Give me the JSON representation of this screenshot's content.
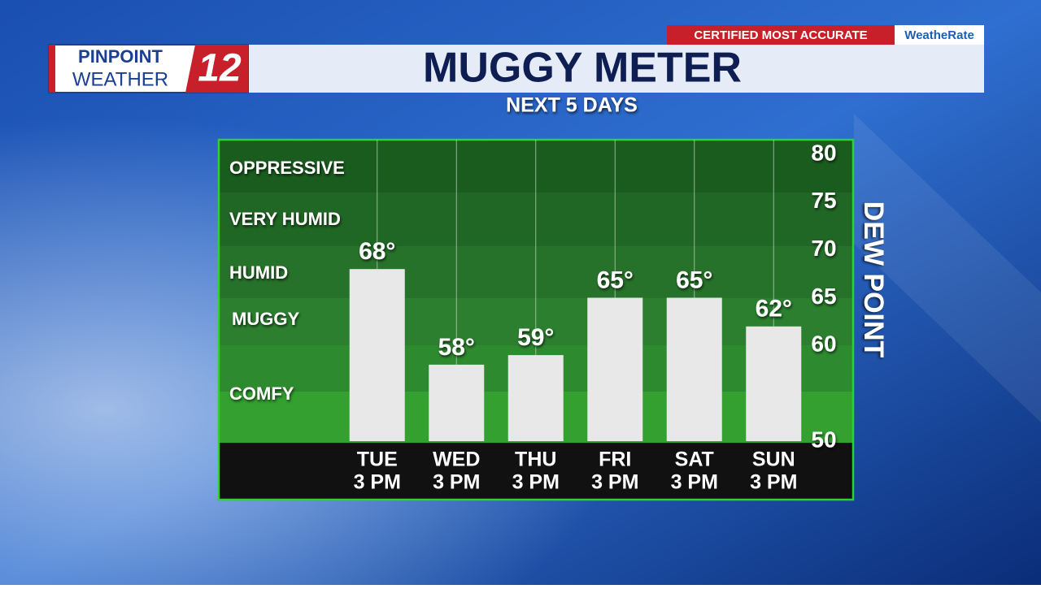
{
  "branding": {
    "logo_top": "PINPOINT",
    "logo_bottom": "WEATHER",
    "logo_number": "12",
    "badge": "CERTIFIED MOST ACCURATE",
    "badge_brand": "WeatheRate"
  },
  "chart_data": {
    "type": "bar",
    "title": "MUGGY METER",
    "subtitle": "NEXT 5 DAYS",
    "y_label": "DEW POINT",
    "categories": [
      "TUE",
      "WED",
      "THU",
      "FRI",
      "SAT",
      "SUN"
    ],
    "category_times": [
      "3 PM",
      "3 PM",
      "3 PM",
      "3 PM",
      "3 PM",
      "3 PM"
    ],
    "values": [
      68,
      58,
      59,
      65,
      65,
      62
    ],
    "value_labels": [
      "68°",
      "58°",
      "59°",
      "65°",
      "65°",
      "62°"
    ],
    "color": "#e8e8e8",
    "ylim": [
      50,
      80
    ],
    "yticks": [
      50,
      60,
      65,
      70,
      75,
      80
    ],
    "zones": [
      "OPPRESSIVE",
      "VERY HUMID",
      "HUMID",
      "MUGGY",
      "COMFY"
    ]
  }
}
